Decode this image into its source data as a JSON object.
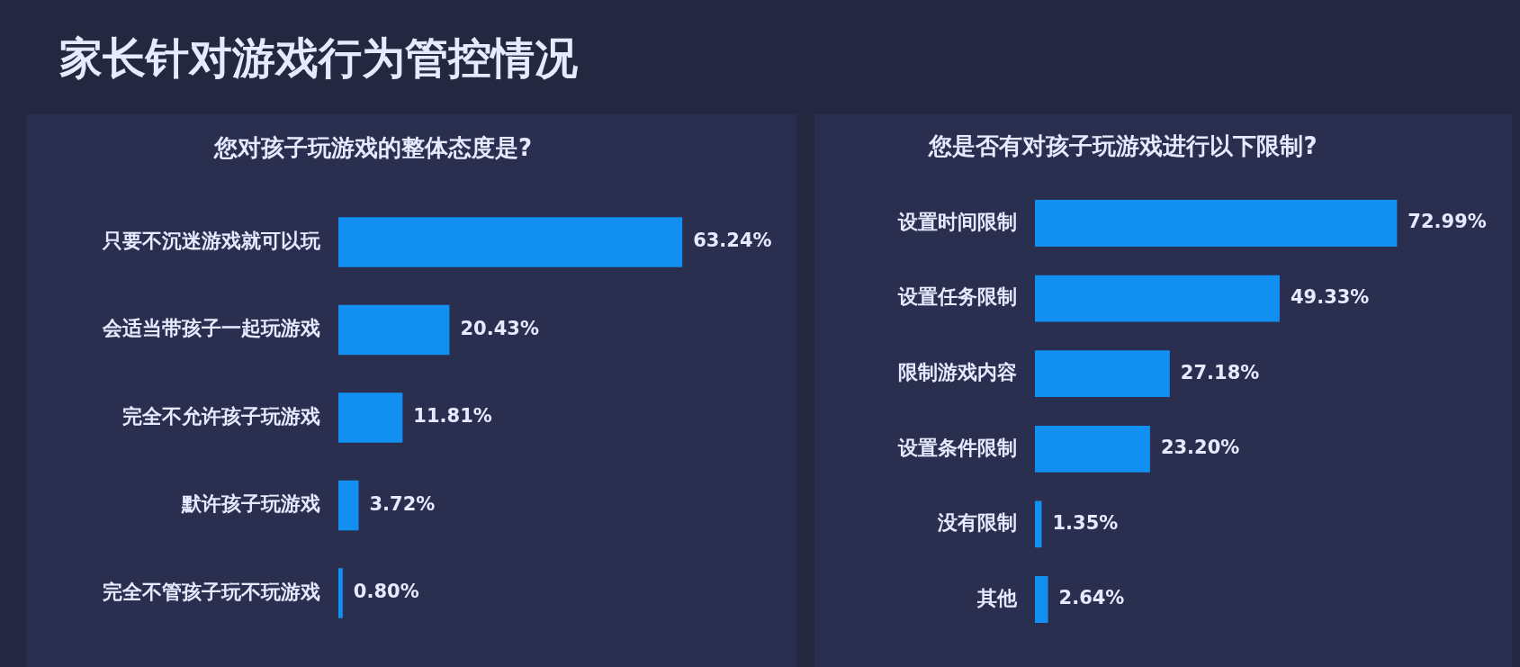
{
  "chart_data": [
    {
      "type": "bar",
      "orientation": "horizontal",
      "title": "家长针对游戏行为管控情况",
      "subtitle": "您对孩子玩游戏的整体态度是?",
      "categories": [
        "只要不沉迷游戏就可以玩",
        "会适当带孩子一起玩游戏",
        "完全不允许孩子玩游戏",
        "默许孩子玩游戏",
        "完全不管孩子玩不玩游戏"
      ],
      "values": [
        63.24,
        20.43,
        11.81,
        3.72,
        0.8
      ],
      "value_labels": [
        "63.24%",
        "20.43%",
        "11.81%",
        "3.72%",
        "0.80%"
      ],
      "color": "#1290f2"
    },
    {
      "type": "bar",
      "orientation": "horizontal",
      "title": "您是否有对孩子玩游戏进行以下限制?",
      "categories": [
        "设置时间限制",
        "设置任务限制",
        "限制游戏内容",
        "设置条件限制",
        "没有限制",
        "其他"
      ],
      "values": [
        72.99,
        49.33,
        27.18,
        23.2,
        1.35,
        2.64
      ],
      "value_labels": [
        "72.99%",
        "49.33%",
        "27.18%",
        "23.20%",
        "1.35%",
        "2.64%"
      ],
      "color": "#1290f2"
    }
  ]
}
